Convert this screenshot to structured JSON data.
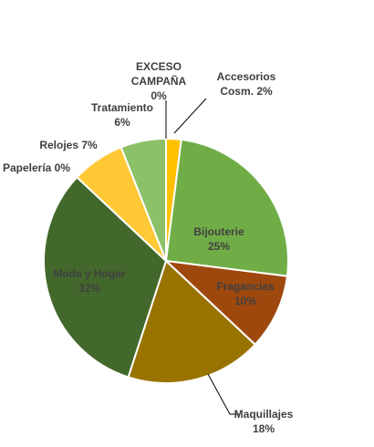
{
  "chart_data": {
    "type": "pie",
    "title": "",
    "slices": [
      {
        "name": "Accesorios Cosm.",
        "label_lines": [
          "Accesorios",
          "Cosm. 2%"
        ],
        "value": 2,
        "color": "#FFC000"
      },
      {
        "name": "Bijouterie",
        "label_lines": [
          "Bijouterie",
          "25%"
        ],
        "value": 25,
        "color": "#70AD47"
      },
      {
        "name": "Fragancias",
        "label_lines": [
          "Fragancias",
          "10%"
        ],
        "value": 10,
        "color": "#9E480E"
      },
      {
        "name": "Maquillajes",
        "label_lines": [
          "Maquillajes",
          "18%"
        ],
        "value": 18,
        "color": "#997300"
      },
      {
        "name": "Moda y Hogar",
        "label_lines": [
          "Moda y Hogar",
          "32%"
        ],
        "value": 32,
        "color": "#43682B"
      },
      {
        "name": "Papelería",
        "label_lines": [
          "Papelería 0%"
        ],
        "value": 0,
        "color": "#255E91"
      },
      {
        "name": "Relojes",
        "label_lines": [
          "Relojes 7%"
        ],
        "value": 7,
        "color": "#FFC935"
      },
      {
        "name": "Tratamiento",
        "label_lines": [
          "Tratamiento",
          "6%"
        ],
        "value": 6,
        "color": "#8CC168"
      },
      {
        "name": "EXCESO CAMPAÑA",
        "label_lines": [
          "EXCESO",
          "CAMPAÑA",
          "0%"
        ],
        "value": 0,
        "color": "#A5A5A5"
      }
    ],
    "legend": "none",
    "data_labels": "category and percentage"
  }
}
